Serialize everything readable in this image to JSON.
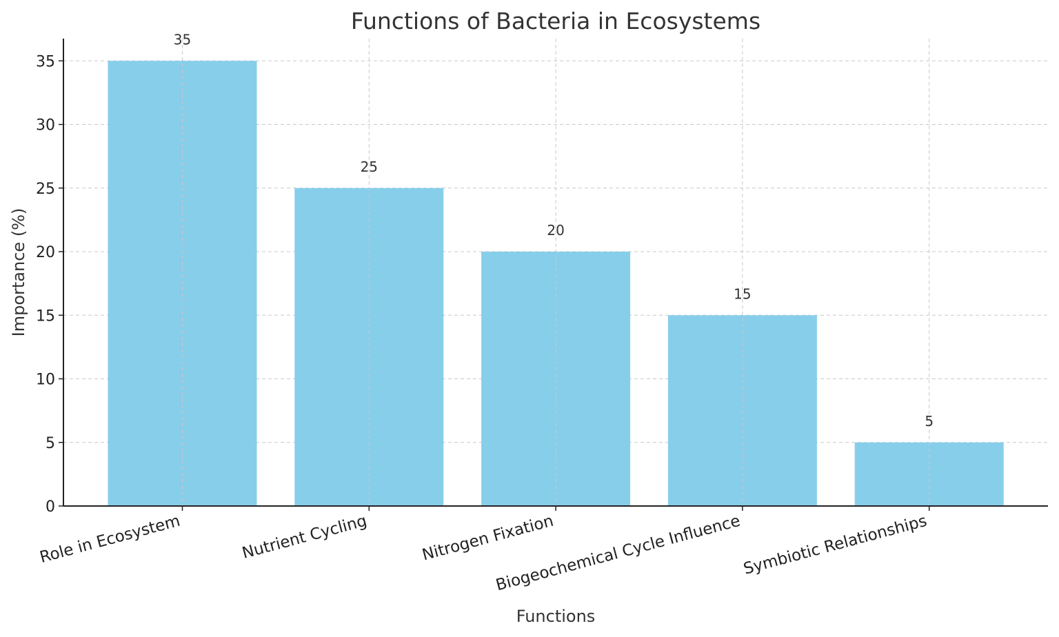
{
  "chart_data": {
    "type": "bar",
    "title": "Functions of Bacteria in Ecosystems",
    "xlabel": "Functions",
    "ylabel": "Importance (%)",
    "categories": [
      "Role in Ecosystem",
      "Nutrient Cycling",
      "Nitrogen Fixation",
      "Biogeochemical Cycle Influence",
      "Symbiotic Relationships"
    ],
    "values": [
      35,
      25,
      20,
      15,
      5
    ],
    "value_labels": [
      "35",
      "25",
      "20",
      "15",
      "5"
    ],
    "ylim": [
      0,
      36.75
    ],
    "yticks": [
      0,
      5,
      10,
      15,
      20,
      25,
      30,
      35
    ],
    "ytick_labels": [
      "0",
      "5",
      "10",
      "15",
      "20",
      "25",
      "30",
      "35"
    ],
    "grid": true,
    "bar_color": "#87ceeb"
  }
}
